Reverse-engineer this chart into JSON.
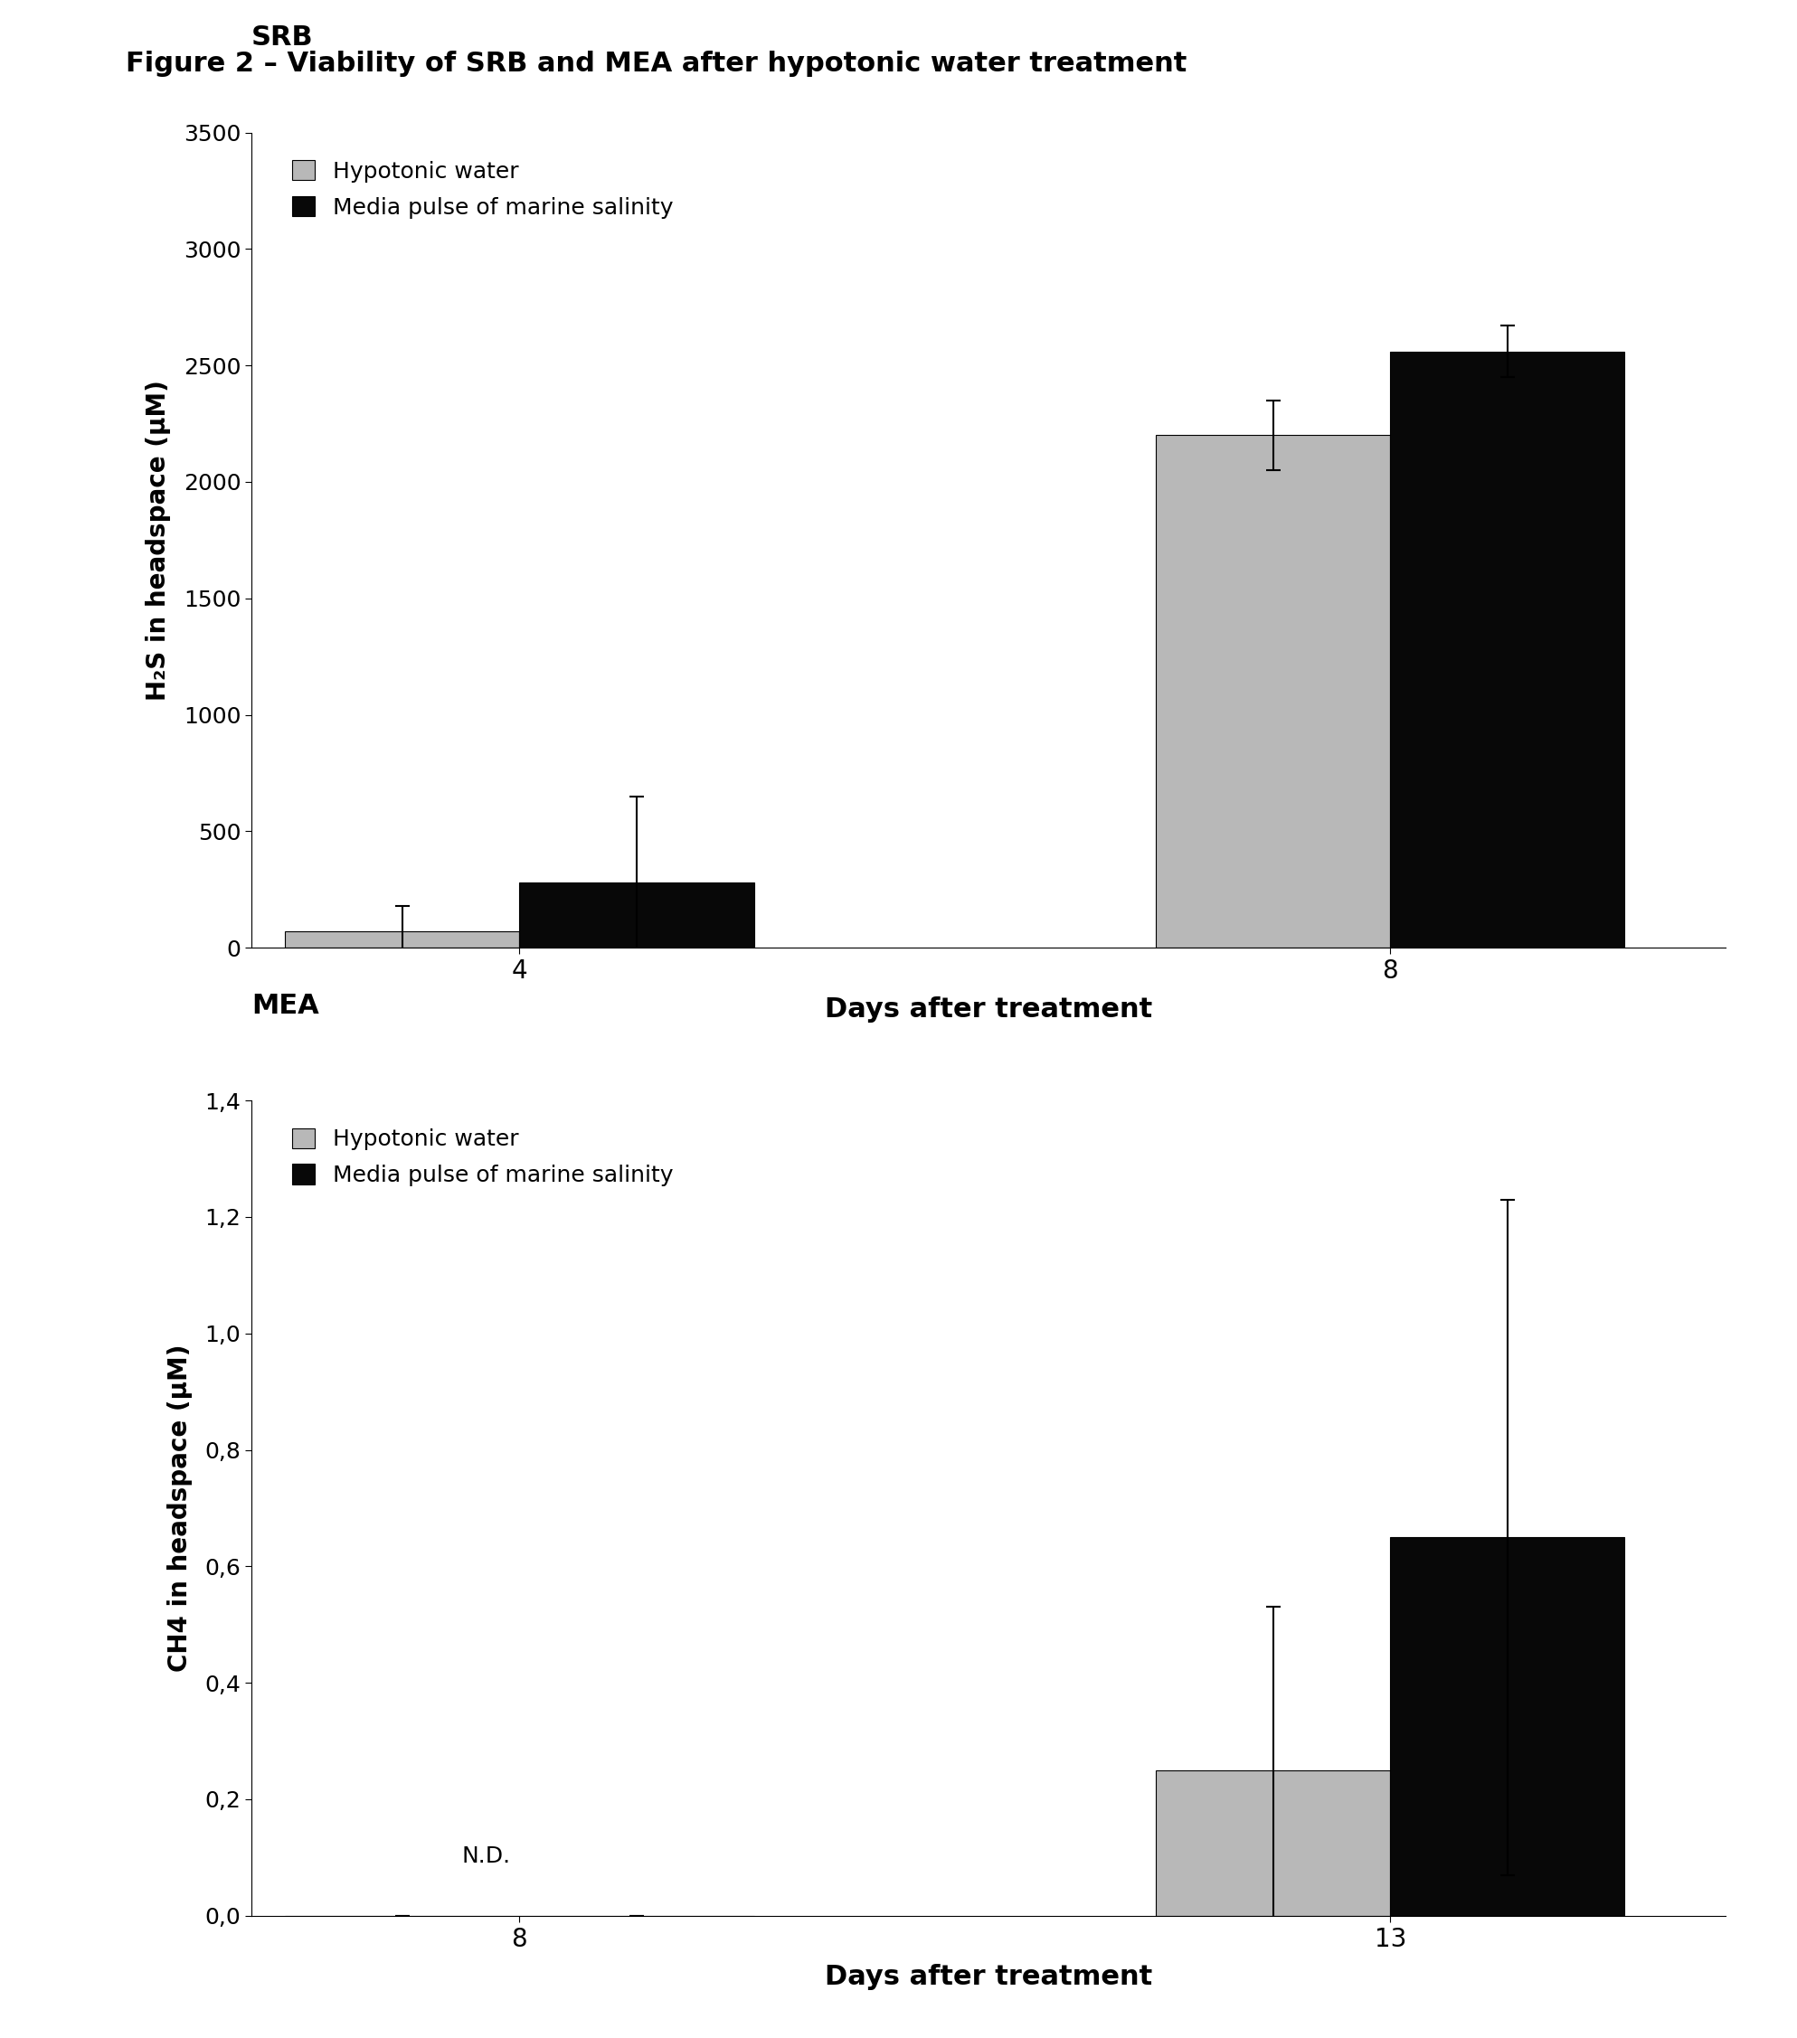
{
  "figure_title": "Figure 2 – Viability of SRB and MEA after hypotonic water treatment",
  "srb": {
    "subtitle": "SRB",
    "xlabel": "Days after treatment",
    "ylabel": "H₂S in headspace (μM)",
    "days": [
      4,
      8
    ],
    "hypotonic_values": [
      70,
      2200
    ],
    "marine_values": [
      280,
      2560
    ],
    "hypotonic_errors": [
      110,
      150
    ],
    "marine_errors": [
      370,
      110
    ],
    "ylim": [
      0,
      3500
    ],
    "yticks": [
      0,
      500,
      1000,
      1500,
      2000,
      2500,
      3000,
      3500
    ],
    "hypotonic_color": "#b8b8b8",
    "marine_color": "#080808",
    "bar_width": 0.35,
    "legend_labels": [
      "Hypotonic water",
      "Media pulse of marine salinity"
    ]
  },
  "mea": {
    "subtitle": "MEA",
    "xlabel": "Days after treatment",
    "ylabel": "CH4 in headspace (μM)",
    "days": [
      8,
      13
    ],
    "hypotonic_values": [
      0,
      0.25
    ],
    "marine_values": [
      0,
      0.65
    ],
    "hypotonic_errors": [
      0,
      0.28
    ],
    "marine_errors": [
      0,
      0.58
    ],
    "ylim": [
      0,
      1.4
    ],
    "yticks": [
      0.0,
      0.2,
      0.4,
      0.6,
      0.8,
      1.0,
      1.2,
      1.4
    ],
    "ytick_labels": [
      "0,0",
      "0,2",
      "0,4",
      "0,6",
      "0,8",
      "1,0",
      "1,2",
      "1,4"
    ],
    "hypotonic_color": "#b8b8b8",
    "marine_color": "#080808",
    "bar_width": 0.35,
    "nd_text": "N.D.",
    "legend_labels": [
      "Hypotonic water",
      "Media pulse of marine salinity"
    ]
  },
  "background_color": "#ffffff"
}
